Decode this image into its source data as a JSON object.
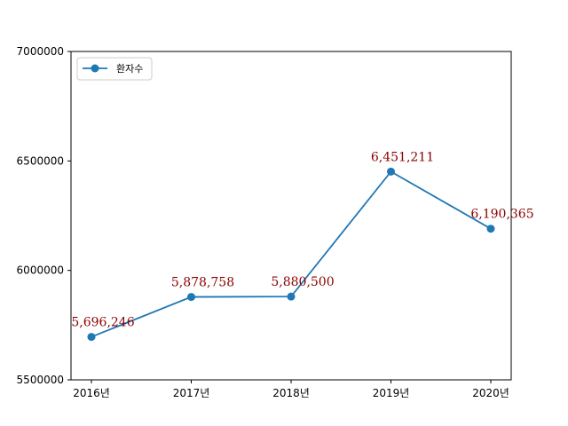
{
  "chart_data": {
    "type": "line",
    "title": "",
    "xlabel": "",
    "ylabel": "",
    "categories": [
      "2016년",
      "2017년",
      "2018년",
      "2019년",
      "2020년"
    ],
    "series": [
      {
        "name": "환자수",
        "values": [
          5696246,
          5878758,
          5880500,
          6451211,
          6190365
        ],
        "color": "#1f77b4",
        "marker": "circle"
      }
    ],
    "data_labels": [
      "5,696,246",
      "5,878,758",
      "5,880,500",
      "6,451,211",
      "6,190,365"
    ],
    "data_label_color": "#8b0000",
    "ylim": [
      5500000,
      7000000
    ],
    "yticks": [
      5500000,
      6000000,
      6500000,
      7000000
    ],
    "ytick_labels": [
      "5500000",
      "6000000",
      "6500000",
      "7000000"
    ],
    "grid": false,
    "legend": {
      "position": "upper-left"
    }
  }
}
